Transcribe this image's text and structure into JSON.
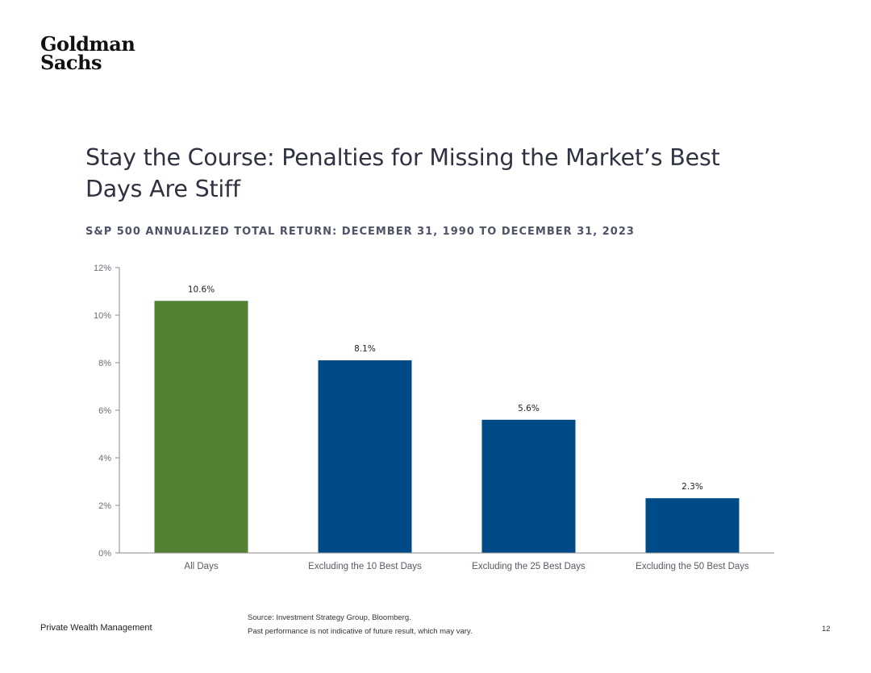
{
  "logo": {
    "line1": "Goldman",
    "line2": "Sachs"
  },
  "title": "Stay the Course: Penalties for Missing the Market’s Best Days Are Stiff",
  "subtitle": "S&P 500 ANNUALIZED TOTAL RETURN: DECEMBER 31, 1990 TO DECEMBER 31, 2023",
  "footer": {
    "left": "Private Wealth Management",
    "source_line1": "Source: Investment Strategy Group, Bloomberg.",
    "source_line2": "Past performance is not indicative of future result, which may vary.",
    "page_number": "12"
  },
  "colors": {
    "green": "#538232",
    "blue": "#004a87",
    "axis": "#888888"
  },
  "chart_data": {
    "type": "bar",
    "categories": [
      "All Days",
      "Excluding the 10 Best Days",
      "Excluding the 25 Best Days",
      "Excluding the 50 Best Days"
    ],
    "values": [
      10.6,
      8.1,
      5.6,
      2.3
    ],
    "data_labels": [
      "10.6%",
      "8.1%",
      "5.6%",
      "2.3%"
    ],
    "bar_colors": [
      "#538232",
      "#004a87",
      "#004a87",
      "#004a87"
    ],
    "ylim": [
      0,
      12
    ],
    "yticks": [
      0,
      2,
      4,
      6,
      8,
      10,
      12
    ],
    "ytick_labels": [
      "0%",
      "2%",
      "4%",
      "6%",
      "8%",
      "10%",
      "12%"
    ],
    "xlabel": "",
    "ylabel": "",
    "grid": false,
    "legend": "none"
  }
}
